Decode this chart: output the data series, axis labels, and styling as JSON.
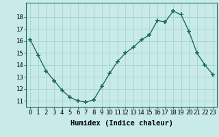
{
  "x": [
    0,
    1,
    2,
    3,
    4,
    5,
    6,
    7,
    8,
    9,
    10,
    11,
    12,
    13,
    14,
    15,
    16,
    17,
    18,
    19,
    20,
    21,
    22,
    23
  ],
  "y": [
    16.1,
    14.8,
    13.5,
    12.7,
    11.9,
    11.3,
    11.0,
    10.9,
    11.1,
    12.2,
    13.3,
    14.3,
    15.0,
    15.5,
    16.1,
    16.5,
    17.7,
    17.6,
    18.5,
    18.2,
    16.8,
    15.0,
    14.0,
    13.2
  ],
  "line_color": "#1a6b5a",
  "bg_color": "#c8eae8",
  "grid_color": "#9dcfcc",
  "xlabel": "Humidex (Indice chaleur)",
  "ylim": [
    10.5,
    19.2
  ],
  "xlim": [
    -0.5,
    23.5
  ],
  "yticks": [
    11,
    12,
    13,
    14,
    15,
    16,
    17,
    18
  ],
  "xticks": [
    0,
    1,
    2,
    3,
    4,
    5,
    6,
    7,
    8,
    9,
    10,
    11,
    12,
    13,
    14,
    15,
    16,
    17,
    18,
    19,
    20,
    21,
    22,
    23
  ],
  "marker": "+",
  "marker_size": 4.5,
  "line_width": 1.0,
  "xlabel_fontsize": 7.5,
  "tick_fontsize": 6.5
}
